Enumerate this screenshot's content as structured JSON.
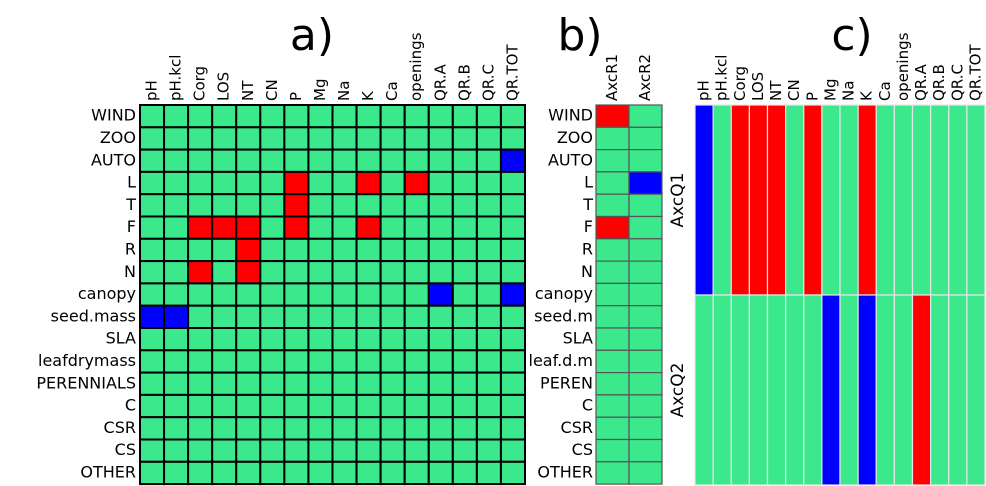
{
  "chart_data": [
    {
      "type": "heatmap",
      "title": "a)",
      "columns": [
        "pH",
        "pH.kcl",
        "Corg",
        "LOS",
        "NT",
        "CN",
        "P",
        "Mg",
        "Na",
        "K",
        "Ca",
        "openings",
        "QR.A",
        "QR.B",
        "QR.C",
        "QR.TOT"
      ],
      "rows": [
        "WIND",
        "ZOO",
        "AUTO",
        "L",
        "T",
        "F",
        "R",
        "N",
        "canopy",
        "seed.mass",
        "SLA",
        "leafdrymass",
        "PERENNIALS",
        "C",
        "CSR",
        "CS",
        "OTHER"
      ],
      "cell_colors": [
        [
          "#3ce88c",
          "#3ce88c",
          "#3ce88c",
          "#3ce88c",
          "#3ce88c",
          "#3ce88c",
          "#3ce88c",
          "#3ce88c",
          "#3ce88c",
          "#3ce88c",
          "#3ce88c",
          "#3ce88c",
          "#3ce88c",
          "#3ce88c",
          "#3ce88c",
          "#3ce88c"
        ],
        [
          "#3ce88c",
          "#3ce88c",
          "#3ce88c",
          "#3ce88c",
          "#3ce88c",
          "#3ce88c",
          "#3ce88c",
          "#3ce88c",
          "#3ce88c",
          "#3ce88c",
          "#3ce88c",
          "#3ce88c",
          "#3ce88c",
          "#3ce88c",
          "#3ce88c",
          "#3ce88c"
        ],
        [
          "#3ce88c",
          "#3ce88c",
          "#3ce88c",
          "#3ce88c",
          "#3ce88c",
          "#3ce88c",
          "#3ce88c",
          "#3ce88c",
          "#3ce88c",
          "#3ce88c",
          "#3ce88c",
          "#3ce88c",
          "#3ce88c",
          "#3ce88c",
          "#3ce88c",
          "#0000ff"
        ],
        [
          "#3ce88c",
          "#3ce88c",
          "#3ce88c",
          "#3ce88c",
          "#3ce88c",
          "#3ce88c",
          "#ff0000",
          "#3ce88c",
          "#3ce88c",
          "#ff0000",
          "#3ce88c",
          "#ff0000",
          "#3ce88c",
          "#3ce88c",
          "#3ce88c",
          "#3ce88c"
        ],
        [
          "#3ce88c",
          "#3ce88c",
          "#3ce88c",
          "#3ce88c",
          "#3ce88c",
          "#3ce88c",
          "#ff0000",
          "#3ce88c",
          "#3ce88c",
          "#3ce88c",
          "#3ce88c",
          "#3ce88c",
          "#3ce88c",
          "#3ce88c",
          "#3ce88c",
          "#3ce88c"
        ],
        [
          "#3ce88c",
          "#3ce88c",
          "#ff0000",
          "#ff0000",
          "#ff0000",
          "#3ce88c",
          "#ff0000",
          "#3ce88c",
          "#3ce88c",
          "#ff0000",
          "#3ce88c",
          "#3ce88c",
          "#3ce88c",
          "#3ce88c",
          "#3ce88c",
          "#3ce88c"
        ],
        [
          "#3ce88c",
          "#3ce88c",
          "#3ce88c",
          "#3ce88c",
          "#ff0000",
          "#3ce88c",
          "#3ce88c",
          "#3ce88c",
          "#3ce88c",
          "#3ce88c",
          "#3ce88c",
          "#3ce88c",
          "#3ce88c",
          "#3ce88c",
          "#3ce88c",
          "#3ce88c"
        ],
        [
          "#3ce88c",
          "#3ce88c",
          "#ff0000",
          "#3ce88c",
          "#ff0000",
          "#3ce88c",
          "#3ce88c",
          "#3ce88c",
          "#3ce88c",
          "#3ce88c",
          "#3ce88c",
          "#3ce88c",
          "#3ce88c",
          "#3ce88c",
          "#3ce88c",
          "#3ce88c"
        ],
        [
          "#3ce88c",
          "#3ce88c",
          "#3ce88c",
          "#3ce88c",
          "#3ce88c",
          "#3ce88c",
          "#3ce88c",
          "#3ce88c",
          "#3ce88c",
          "#3ce88c",
          "#3ce88c",
          "#3ce88c",
          "#0000ff",
          "#3ce88c",
          "#3ce88c",
          "#0000ff"
        ],
        [
          "#0000ff",
          "#0000ff",
          "#3ce88c",
          "#3ce88c",
          "#3ce88c",
          "#3ce88c",
          "#3ce88c",
          "#3ce88c",
          "#3ce88c",
          "#3ce88c",
          "#3ce88c",
          "#3ce88c",
          "#3ce88c",
          "#3ce88c",
          "#3ce88c",
          "#3ce88c"
        ],
        [
          "#3ce88c",
          "#3ce88c",
          "#3ce88c",
          "#3ce88c",
          "#3ce88c",
          "#3ce88c",
          "#3ce88c",
          "#3ce88c",
          "#3ce88c",
          "#3ce88c",
          "#3ce88c",
          "#3ce88c",
          "#3ce88c",
          "#3ce88c",
          "#3ce88c",
          "#3ce88c"
        ],
        [
          "#3ce88c",
          "#3ce88c",
          "#3ce88c",
          "#3ce88c",
          "#3ce88c",
          "#3ce88c",
          "#3ce88c",
          "#3ce88c",
          "#3ce88c",
          "#3ce88c",
          "#3ce88c",
          "#3ce88c",
          "#3ce88c",
          "#3ce88c",
          "#3ce88c",
          "#3ce88c"
        ],
        [
          "#3ce88c",
          "#3ce88c",
          "#3ce88c",
          "#3ce88c",
          "#3ce88c",
          "#3ce88c",
          "#3ce88c",
          "#3ce88c",
          "#3ce88c",
          "#3ce88c",
          "#3ce88c",
          "#3ce88c",
          "#3ce88c",
          "#3ce88c",
          "#3ce88c",
          "#3ce88c"
        ],
        [
          "#3ce88c",
          "#3ce88c",
          "#3ce88c",
          "#3ce88c",
          "#3ce88c",
          "#3ce88c",
          "#3ce88c",
          "#3ce88c",
          "#3ce88c",
          "#3ce88c",
          "#3ce88c",
          "#3ce88c",
          "#3ce88c",
          "#3ce88c",
          "#3ce88c",
          "#3ce88c"
        ],
        [
          "#3ce88c",
          "#3ce88c",
          "#3ce88c",
          "#3ce88c",
          "#3ce88c",
          "#3ce88c",
          "#3ce88c",
          "#3ce88c",
          "#3ce88c",
          "#3ce88c",
          "#3ce88c",
          "#3ce88c",
          "#3ce88c",
          "#3ce88c",
          "#3ce88c",
          "#3ce88c"
        ],
        [
          "#3ce88c",
          "#3ce88c",
          "#3ce88c",
          "#3ce88c",
          "#3ce88c",
          "#3ce88c",
          "#3ce88c",
          "#3ce88c",
          "#3ce88c",
          "#3ce88c",
          "#3ce88c",
          "#3ce88c",
          "#3ce88c",
          "#3ce88c",
          "#3ce88c",
          "#3ce88c"
        ],
        [
          "#3ce88c",
          "#3ce88c",
          "#3ce88c",
          "#3ce88c",
          "#3ce88c",
          "#3ce88c",
          "#3ce88c",
          "#3ce88c",
          "#3ce88c",
          "#3ce88c",
          "#3ce88c",
          "#3ce88c",
          "#3ce88c",
          "#3ce88c",
          "#3ce88c",
          "#3ce88c"
        ]
      ]
    },
    {
      "type": "heatmap",
      "title": "b)",
      "columns": [
        "AxcR1",
        "AxcR2"
      ],
      "rows": [
        "WIND",
        "ZOO",
        "AUTO",
        "L",
        "T",
        "F",
        "R",
        "N",
        "canopy",
        "seed.m",
        "SLA",
        "leaf.d.m",
        "PEREN",
        "C",
        "CSR",
        "CS",
        "OTHER"
      ],
      "cell_colors": [
        [
          "#ff0000",
          "#3ce88c"
        ],
        [
          "#3ce88c",
          "#3ce88c"
        ],
        [
          "#3ce88c",
          "#3ce88c"
        ],
        [
          "#3ce88c",
          "#0000ff"
        ],
        [
          "#3ce88c",
          "#3ce88c"
        ],
        [
          "#ff0000",
          "#3ce88c"
        ],
        [
          "#3ce88c",
          "#3ce88c"
        ],
        [
          "#3ce88c",
          "#3ce88c"
        ],
        [
          "#3ce88c",
          "#3ce88c"
        ],
        [
          "#3ce88c",
          "#3ce88c"
        ],
        [
          "#3ce88c",
          "#3ce88c"
        ],
        [
          "#3ce88c",
          "#3ce88c"
        ],
        [
          "#3ce88c",
          "#3ce88c"
        ],
        [
          "#3ce88c",
          "#3ce88c"
        ],
        [
          "#3ce88c",
          "#3ce88c"
        ],
        [
          "#3ce88c",
          "#3ce88c"
        ],
        [
          "#3ce88c",
          "#3ce88c"
        ]
      ]
    },
    {
      "type": "heatmap",
      "title": "c)",
      "columns": [
        "pH",
        "pH.kcl",
        "Corg",
        "LOS",
        "NT",
        "CN",
        "P",
        "Mg",
        "Na",
        "K",
        "Ca",
        "openings",
        "QR.A",
        "QR.B",
        "QR.C",
        "QR.TOT"
      ],
      "rows": [
        "AxcQ1",
        "AxcQ2"
      ],
      "cell_colors": [
        [
          "#0000ff",
          "#3ce88c",
          "#ff0000",
          "#ff0000",
          "#ff0000",
          "#3ce88c",
          "#ff0000",
          "#3ce88c",
          "#3ce88c",
          "#ff0000",
          "#3ce88c",
          "#3ce88c",
          "#3ce88c",
          "#3ce88c",
          "#3ce88c",
          "#3ce88c"
        ],
        [
          "#3ce88c",
          "#3ce88c",
          "#3ce88c",
          "#3ce88c",
          "#3ce88c",
          "#3ce88c",
          "#3ce88c",
          "#0000ff",
          "#3ce88c",
          "#0000ff",
          "#3ce88c",
          "#3ce88c",
          "#ff0000",
          "#3ce88c",
          "#3ce88c",
          "#3ce88c"
        ]
      ]
    }
  ]
}
